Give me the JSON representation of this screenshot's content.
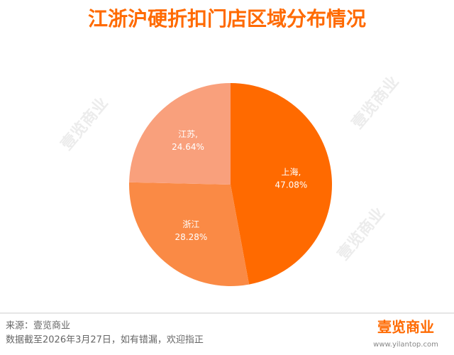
{
  "chart_data": {
    "type": "pie",
    "title": "江浙沪硬折扣门店区域分布情况",
    "categories": [
      "上海,",
      "浙江",
      "江苏,"
    ],
    "values": [
      47.08,
      28.28,
      24.64
    ],
    "value_labels": [
      "47.08%",
      "28.28%",
      "24.64%"
    ],
    "colors": [
      "#ff6a00",
      "#fa8a45",
      "#f9a07c"
    ]
  },
  "footer": {
    "source": "来源：壹览商业",
    "note": "数据截至2026年3月27日，如有错漏，欢迎指正",
    "logo": "壹览商业",
    "url": "www.yilantop.com"
  },
  "watermark": "壹览商业"
}
